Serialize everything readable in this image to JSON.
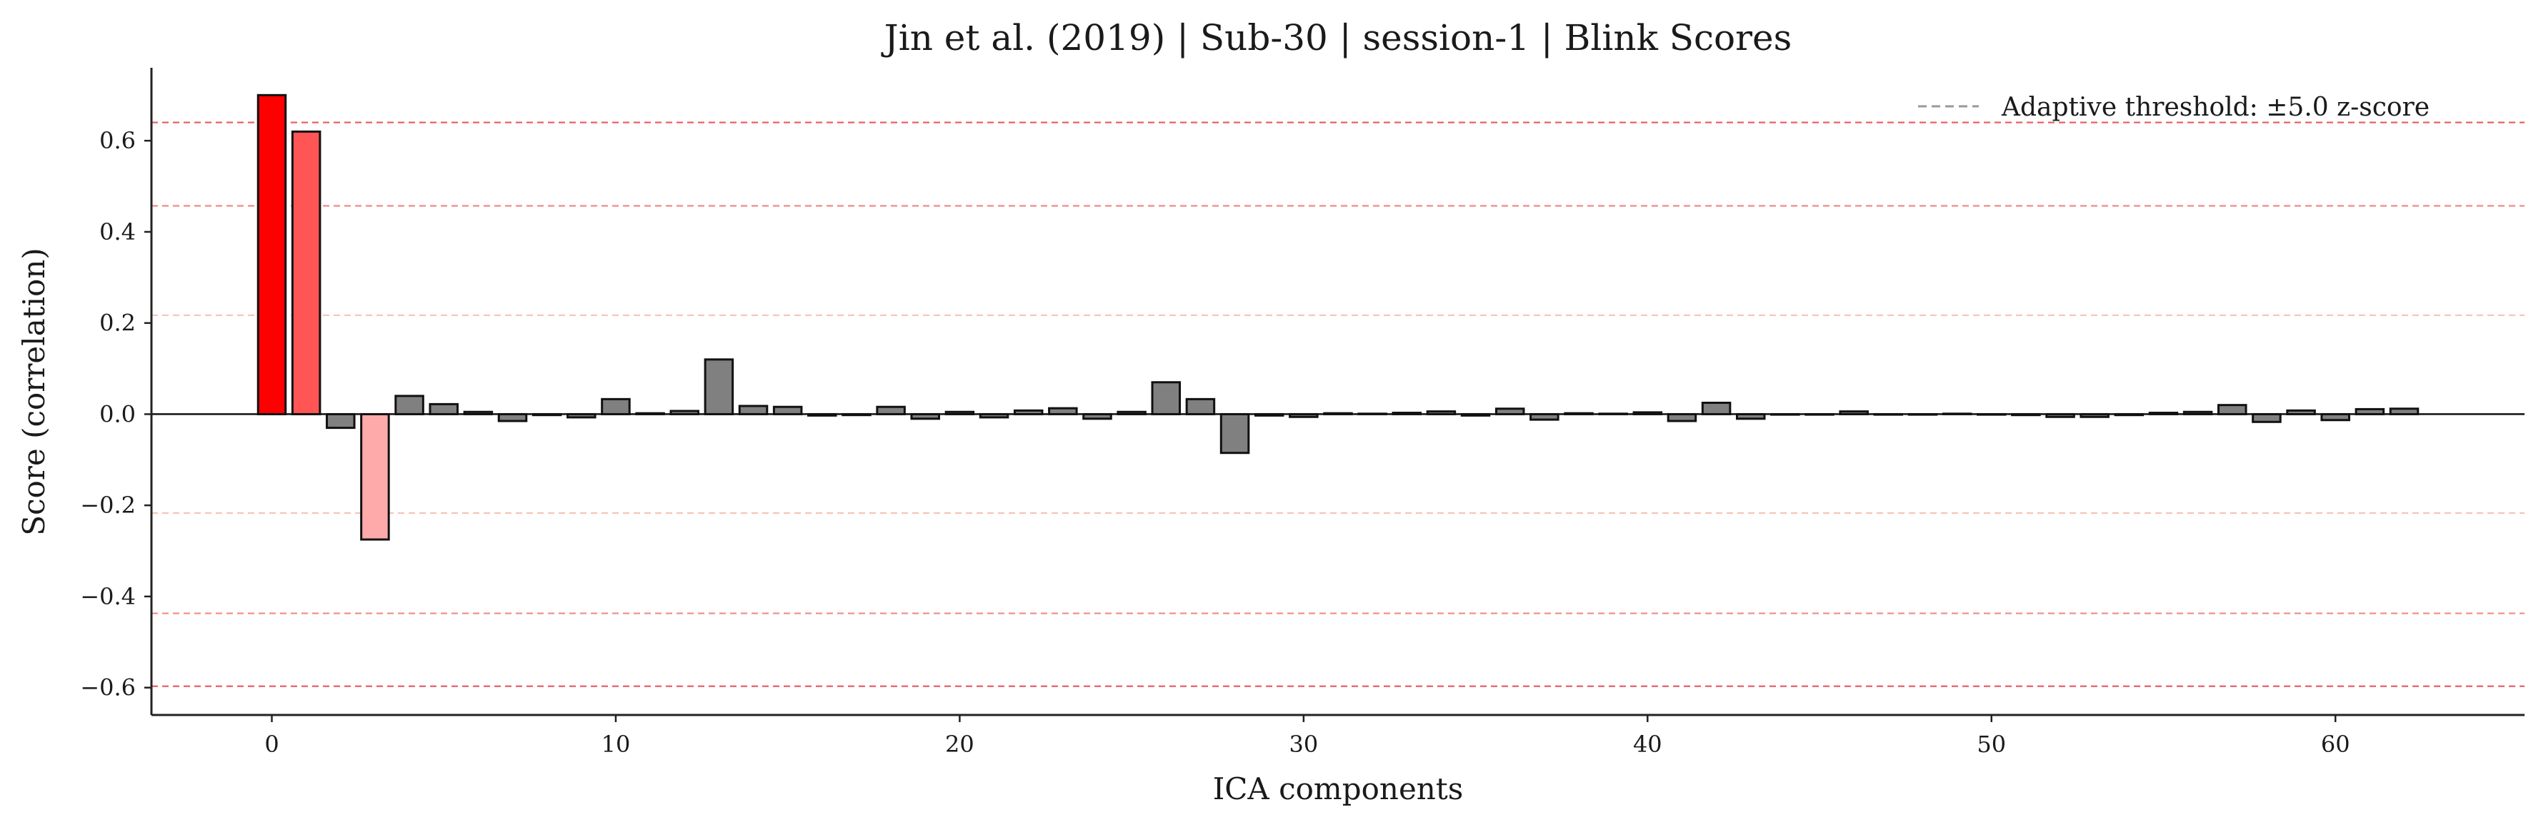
{
  "chart_data": {
    "type": "bar",
    "title": "Jin et al. (2019) | Sub-30 | session-1 | Blink Scores",
    "xlabel": "ICA components",
    "ylabel": "Score (correlation)",
    "xlim": [
      -3.5,
      65.5
    ],
    "ylim": [
      -0.66,
      0.76
    ],
    "xticks": [
      0,
      10,
      20,
      30,
      40,
      50,
      60
    ],
    "xtick_labels": [
      "0",
      "10",
      "20",
      "30",
      "40",
      "50",
      "60"
    ],
    "yticks": [
      -0.6,
      -0.4,
      -0.2,
      0.0,
      0.2,
      0.4,
      0.6
    ],
    "ytick_labels": [
      "−0.6",
      "−0.4",
      "−0.2",
      "0.0",
      "0.2",
      "0.4",
      "0.6"
    ],
    "grid": false,
    "legend": {
      "placement": "upper-right",
      "entries": [
        {
          "label": "Adaptive threshold: ±5.0 z-score",
          "style": "dashed",
          "color": "#999999"
        }
      ]
    },
    "threshold_lines": [
      {
        "y": 0.64,
        "color": "#e8606a"
      },
      {
        "y": 0.457,
        "color": "#f08a8a"
      },
      {
        "y": 0.217,
        "color": "#f6c2b6"
      },
      {
        "y": -0.217,
        "color": "#f6c2b6"
      },
      {
        "y": -0.437,
        "color": "#f08a8a"
      },
      {
        "y": -0.597,
        "color": "#e8606a"
      }
    ],
    "colors": {
      "default_bar": "#808080",
      "edge": "#111111",
      "baseline": "#111111"
    },
    "bar_colors": {
      "0": "#ff0000",
      "1": "#ff5555",
      "3": "#ffaaaa"
    },
    "x": [
      0,
      1,
      2,
      3,
      4,
      5,
      6,
      7,
      8,
      9,
      10,
      11,
      12,
      13,
      14,
      15,
      16,
      17,
      18,
      19,
      20,
      21,
      22,
      23,
      24,
      25,
      26,
      27,
      28,
      29,
      30,
      31,
      32,
      33,
      34,
      35,
      36,
      37,
      38,
      39,
      40,
      41,
      42,
      43,
      44,
      45,
      46,
      47,
      48,
      49,
      50,
      51,
      52,
      53,
      54,
      55,
      56,
      57,
      58,
      59,
      60,
      61,
      62
    ],
    "values": [
      0.7,
      0.62,
      -0.03,
      -0.275,
      0.04,
      0.022,
      0.005,
      -0.015,
      -0.002,
      -0.007,
      0.033,
      0.002,
      0.007,
      0.12,
      0.018,
      0.016,
      -0.003,
      -0.002,
      0.016,
      -0.01,
      0.005,
      -0.007,
      0.008,
      0.013,
      -0.01,
      0.005,
      0.07,
      0.033,
      -0.085,
      -0.003,
      -0.006,
      0.002,
      0.001,
      0.003,
      0.006,
      -0.003,
      0.012,
      -0.012,
      0.002,
      0.001,
      0.004,
      -0.015,
      0.025,
      -0.01,
      -0.001,
      -0.001,
      0.006,
      -0.001,
      -0.001,
      0.001,
      -0.001,
      -0.002,
      -0.006,
      -0.006,
      -0.002,
      0.003,
      0.005,
      0.02,
      -0.017,
      0.008,
      -0.013,
      0.011,
      0.012
    ]
  }
}
